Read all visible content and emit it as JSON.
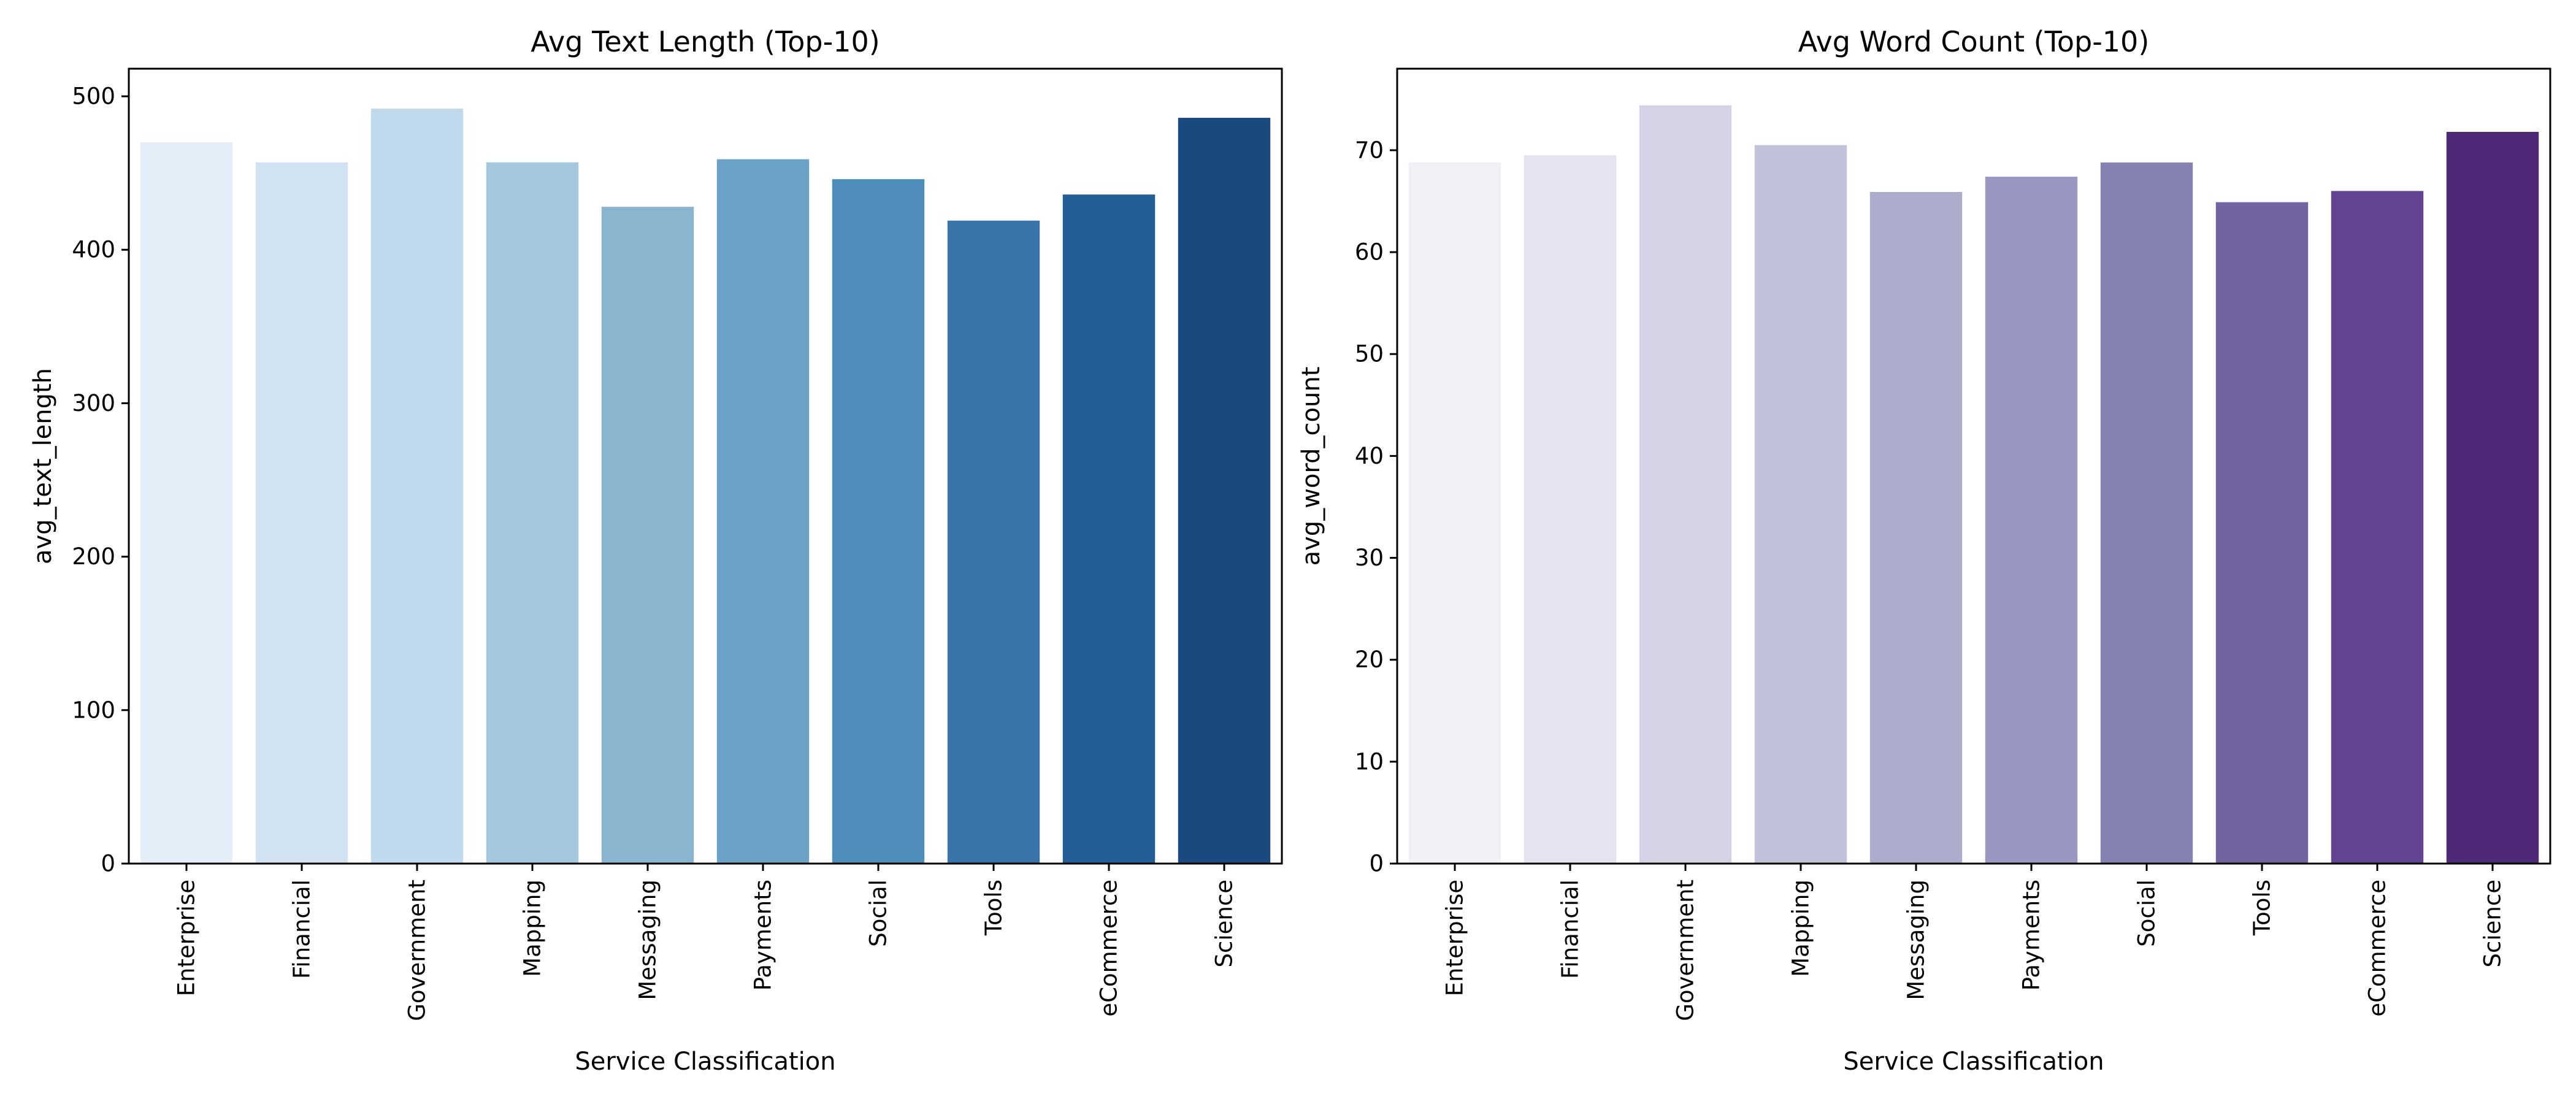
{
  "chart_data": [
    {
      "type": "bar",
      "title": "Avg Text Length (Top-10)",
      "xlabel": "Service Classification",
      "ylabel": "avg_text_length",
      "categories": [
        "Enterprise",
        "Financial",
        "Government",
        "Mapping",
        "Messaging",
        "Payments",
        "Social",
        "Tools",
        "eCommerce",
        "Science"
      ],
      "values": [
        470,
        457,
        492,
        457,
        428,
        459,
        446,
        419,
        436,
        486
      ],
      "ylim": [
        0,
        518
      ],
      "yticks": [
        0,
        100,
        200,
        300,
        400,
        500
      ],
      "grid": false,
      "colors": [
        "#e3eef8",
        "#d1e2f2",
        "#c1d9ed",
        "#a6c8df",
        "#8ab5cf",
        "#6ca2c7",
        "#4f8dba",
        "#3874a9",
        "#225d97",
        "#1a497f"
      ]
    },
    {
      "type": "bar",
      "title": "Avg Word Count (Top-10)",
      "xlabel": "Service Classification",
      "ylabel": "avg_word_count",
      "categories": [
        "Enterprise",
        "Financial",
        "Government",
        "Mapping",
        "Messaging",
        "Payments",
        "Social",
        "Tools",
        "eCommerce",
        "Science"
      ],
      "values": [
        68.8,
        69.5,
        74.4,
        70.5,
        65.9,
        67.4,
        68.8,
        64.9,
        66.0,
        71.8
      ],
      "ylim": [
        0,
        78
      ],
      "yticks": [
        0,
        10,
        20,
        30,
        40,
        50,
        60,
        70
      ],
      "grid": false,
      "colors": [
        "#f1f0f7",
        "#e4e3ef",
        "#d3d3e5",
        "#c1c1d9",
        "#ababcb",
        "#9a96c2",
        "#8582b2",
        "#7363a1",
        "#624492",
        "#4e2977"
      ]
    }
  ]
}
